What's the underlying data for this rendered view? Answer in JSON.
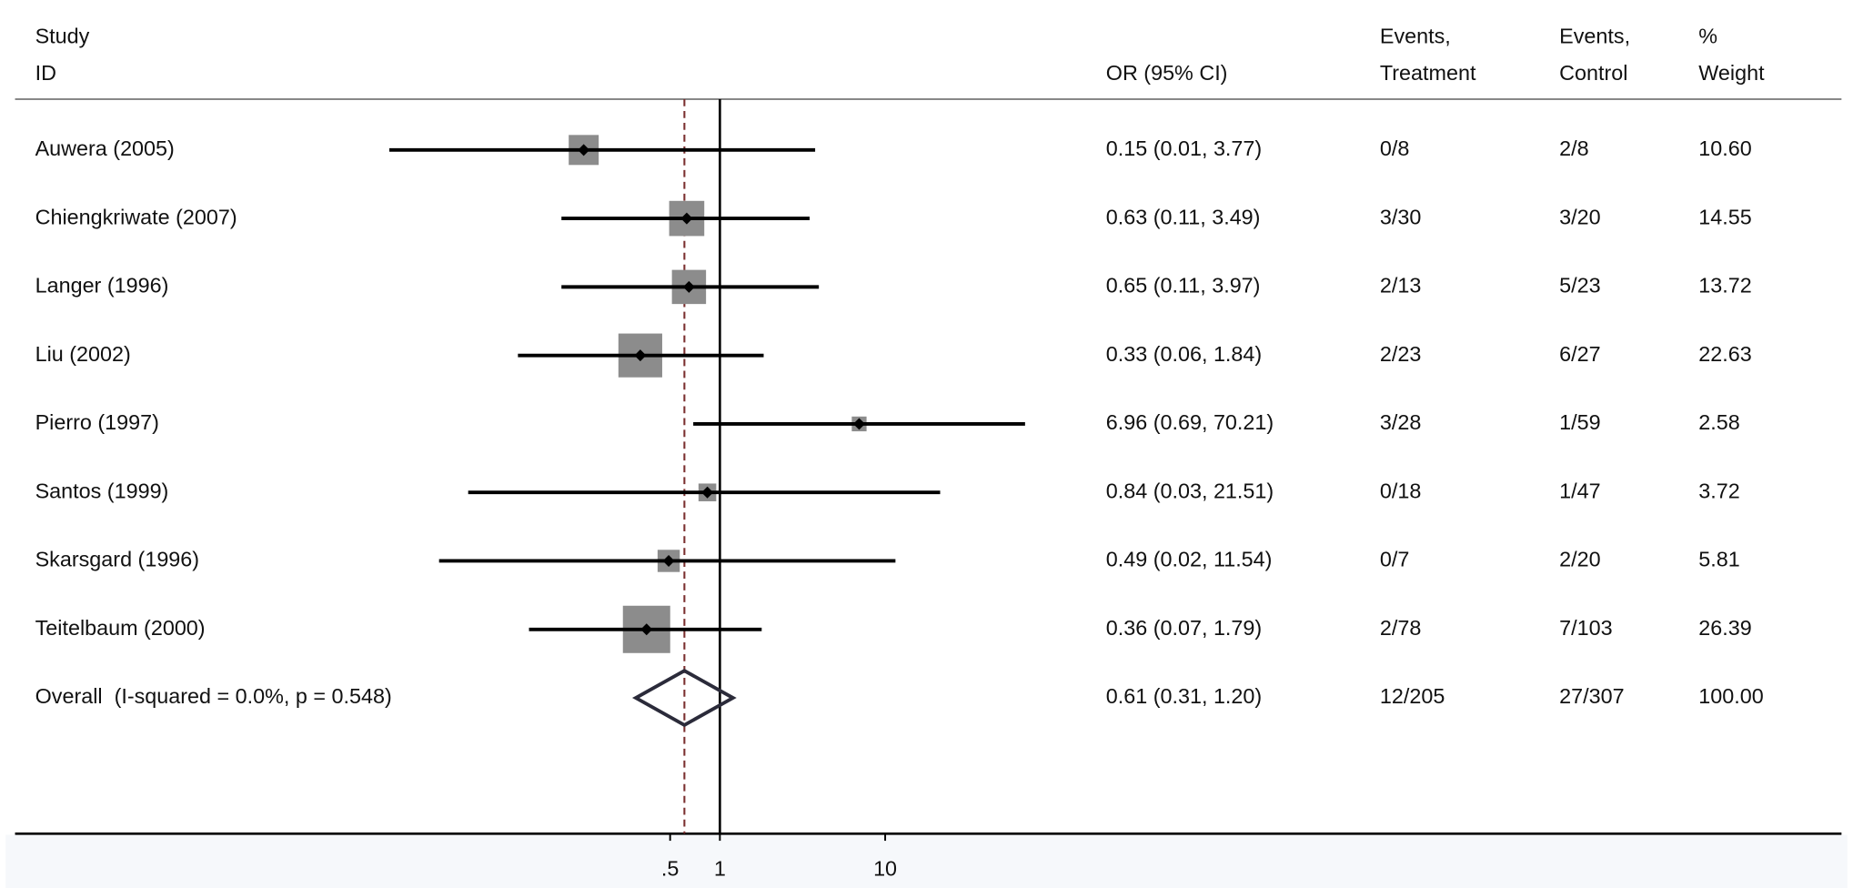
{
  "chart_data": {
    "type": "forest",
    "headers": {
      "study_1": "Study",
      "study_2": "ID",
      "or": "OR (95% CI)",
      "treat_1": "Events,",
      "treat_2": "Treatment",
      "control_1": "Events,",
      "control_2": "Control",
      "weight_1": "%",
      "weight_2": "Weight"
    },
    "xscale": "log",
    "xlim": [
      0.006,
      72
    ],
    "xticks": [
      {
        "value": 0.5,
        "label": ".5"
      },
      1,
      10
    ],
    "box_color": "#8c8c8c",
    "line_color": "#000000",
    "diamond_color": "#2b2b3a",
    "dashed_color": "#7a2f2f",
    "studies": [
      {
        "name": "Auwera (2005)",
        "or": 0.15,
        "lo": 0.01,
        "hi": 3.77,
        "or_label": "0.15 (0.01, 3.77)",
        "events_treatment": "0/8",
        "events_control": "2/8",
        "weight": 10.6,
        "weight_label": "10.60"
      },
      {
        "name": "Chiengkriwate (2007)",
        "or": 0.63,
        "lo": 0.11,
        "hi": 3.49,
        "or_label": "0.63 (0.11, 3.49)",
        "events_treatment": "3/30",
        "events_control": "3/20",
        "weight": 14.55,
        "weight_label": "14.55"
      },
      {
        "name": "Langer (1996)",
        "or": 0.65,
        "lo": 0.11,
        "hi": 3.97,
        "or_label": "0.65 (0.11, 3.97)",
        "events_treatment": "2/13",
        "events_control": "5/23",
        "weight": 13.72,
        "weight_label": "13.72"
      },
      {
        "name": "Liu (2002)",
        "or": 0.33,
        "lo": 0.06,
        "hi": 1.84,
        "or_label": "0.33 (0.06, 1.84)",
        "events_treatment": "2/23",
        "events_control": "6/27",
        "weight": 22.63,
        "weight_label": "22.63"
      },
      {
        "name": "Pierro (1997)",
        "or": 6.96,
        "lo": 0.69,
        "hi": 70.21,
        "or_label": "6.96 (0.69, 70.21)",
        "events_treatment": "3/28",
        "events_control": "1/59",
        "weight": 2.58,
        "weight_label": "2.58"
      },
      {
        "name": "Santos (1999)",
        "or": 0.84,
        "lo": 0.03,
        "hi": 21.51,
        "or_label": "0.84 (0.03, 21.51)",
        "events_treatment": "0/18",
        "events_control": "1/47",
        "weight": 3.72,
        "weight_label": "3.72"
      },
      {
        "name": "Skarsgard (1996)",
        "or": 0.49,
        "lo": 0.02,
        "hi": 11.54,
        "or_label": "0.49 (0.02, 11.54)",
        "events_treatment": "0/7",
        "events_control": "2/20",
        "weight": 5.81,
        "weight_label": "5.81"
      },
      {
        "name": "Teitelbaum (2000)",
        "or": 0.36,
        "lo": 0.07,
        "hi": 1.79,
        "or_label": "0.36 (0.07, 1.79)",
        "events_treatment": "2/78",
        "events_control": "7/103",
        "weight": 26.39,
        "weight_label": "26.39"
      }
    ],
    "overall": {
      "name": "Overall  (I-squared = 0.0%, p = 0.548)",
      "or": 0.61,
      "lo": 0.31,
      "hi": 1.2,
      "or_label": "0.61 (0.31, 1.20)",
      "events_treatment": "12/205",
      "events_control": "27/307",
      "weight": 100,
      "weight_label": "100.00"
    }
  }
}
